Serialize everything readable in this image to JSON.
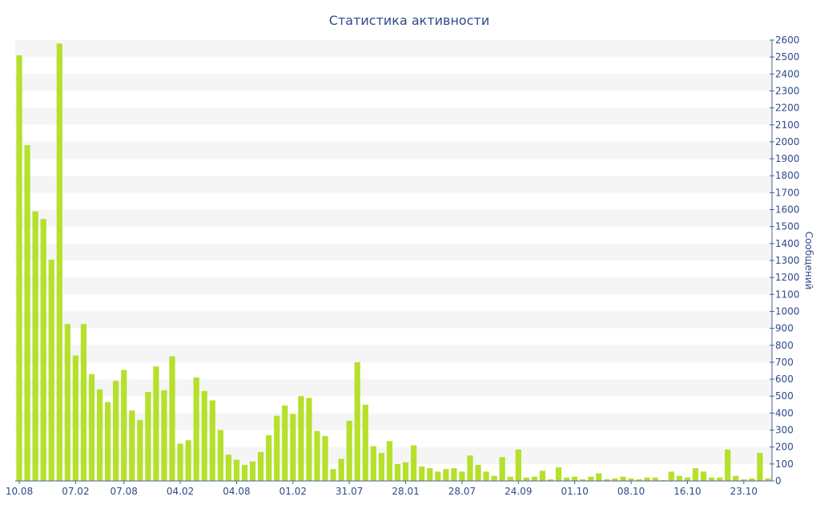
{
  "chart_data": {
    "type": "bar",
    "title": "Статистика активности",
    "ylabel": "Сообщений",
    "ylim": [
      0,
      2600
    ],
    "y_ticks": [
      0,
      100,
      200,
      300,
      400,
      500,
      600,
      700,
      800,
      900,
      1000,
      1100,
      1200,
      1300,
      1400,
      1500,
      1600,
      1700,
      1800,
      1900,
      2000,
      2100,
      2200,
      2300,
      2400,
      2500,
      2600
    ],
    "x_tick_labels": [
      {
        "label": "10.08",
        "index": 0
      },
      {
        "label": "07.02",
        "index": 7
      },
      {
        "label": "07.08",
        "index": 13
      },
      {
        "label": "04.02",
        "index": 20
      },
      {
        "label": "04.08",
        "index": 27
      },
      {
        "label": "01.02",
        "index": 34
      },
      {
        "label": "31.07",
        "index": 41
      },
      {
        "label": "28.01",
        "index": 48
      },
      {
        "label": "28.07",
        "index": 55
      },
      {
        "label": "24.09",
        "index": 62
      },
      {
        "label": "01.10",
        "index": 69
      },
      {
        "label": "08.10",
        "index": 76
      },
      {
        "label": "16.10",
        "index": 83
      },
      {
        "label": "23.10",
        "index": 90
      }
    ],
    "values": [
      2510,
      1980,
      1590,
      1545,
      1305,
      2580,
      925,
      740,
      925,
      630,
      540,
      465,
      590,
      655,
      415,
      360,
      525,
      675,
      535,
      735,
      220,
      240,
      610,
      530,
      475,
      300,
      155,
      125,
      95,
      115,
      170,
      270,
      385,
      445,
      395,
      500,
      490,
      295,
      265,
      70,
      130,
      355,
      700,
      450,
      205,
      165,
      235,
      100,
      110,
      210,
      85,
      75,
      55,
      70,
      75,
      55,
      150,
      95,
      55,
      30,
      140,
      25,
      185,
      20,
      25,
      60,
      10,
      80,
      20,
      25,
      10,
      25,
      45,
      10,
      15,
      25,
      15,
      10,
      20,
      20,
      5,
      55,
      30,
      20,
      75,
      55,
      20,
      20,
      185,
      30,
      10,
      15,
      165,
      15
    ],
    "grid": true,
    "y_axis_position": "right",
    "colors": {
      "bar": "#b5e02c",
      "text": "#2f4b8a",
      "axis": "#4a5f9a",
      "band": "#f5f5f5"
    }
  }
}
